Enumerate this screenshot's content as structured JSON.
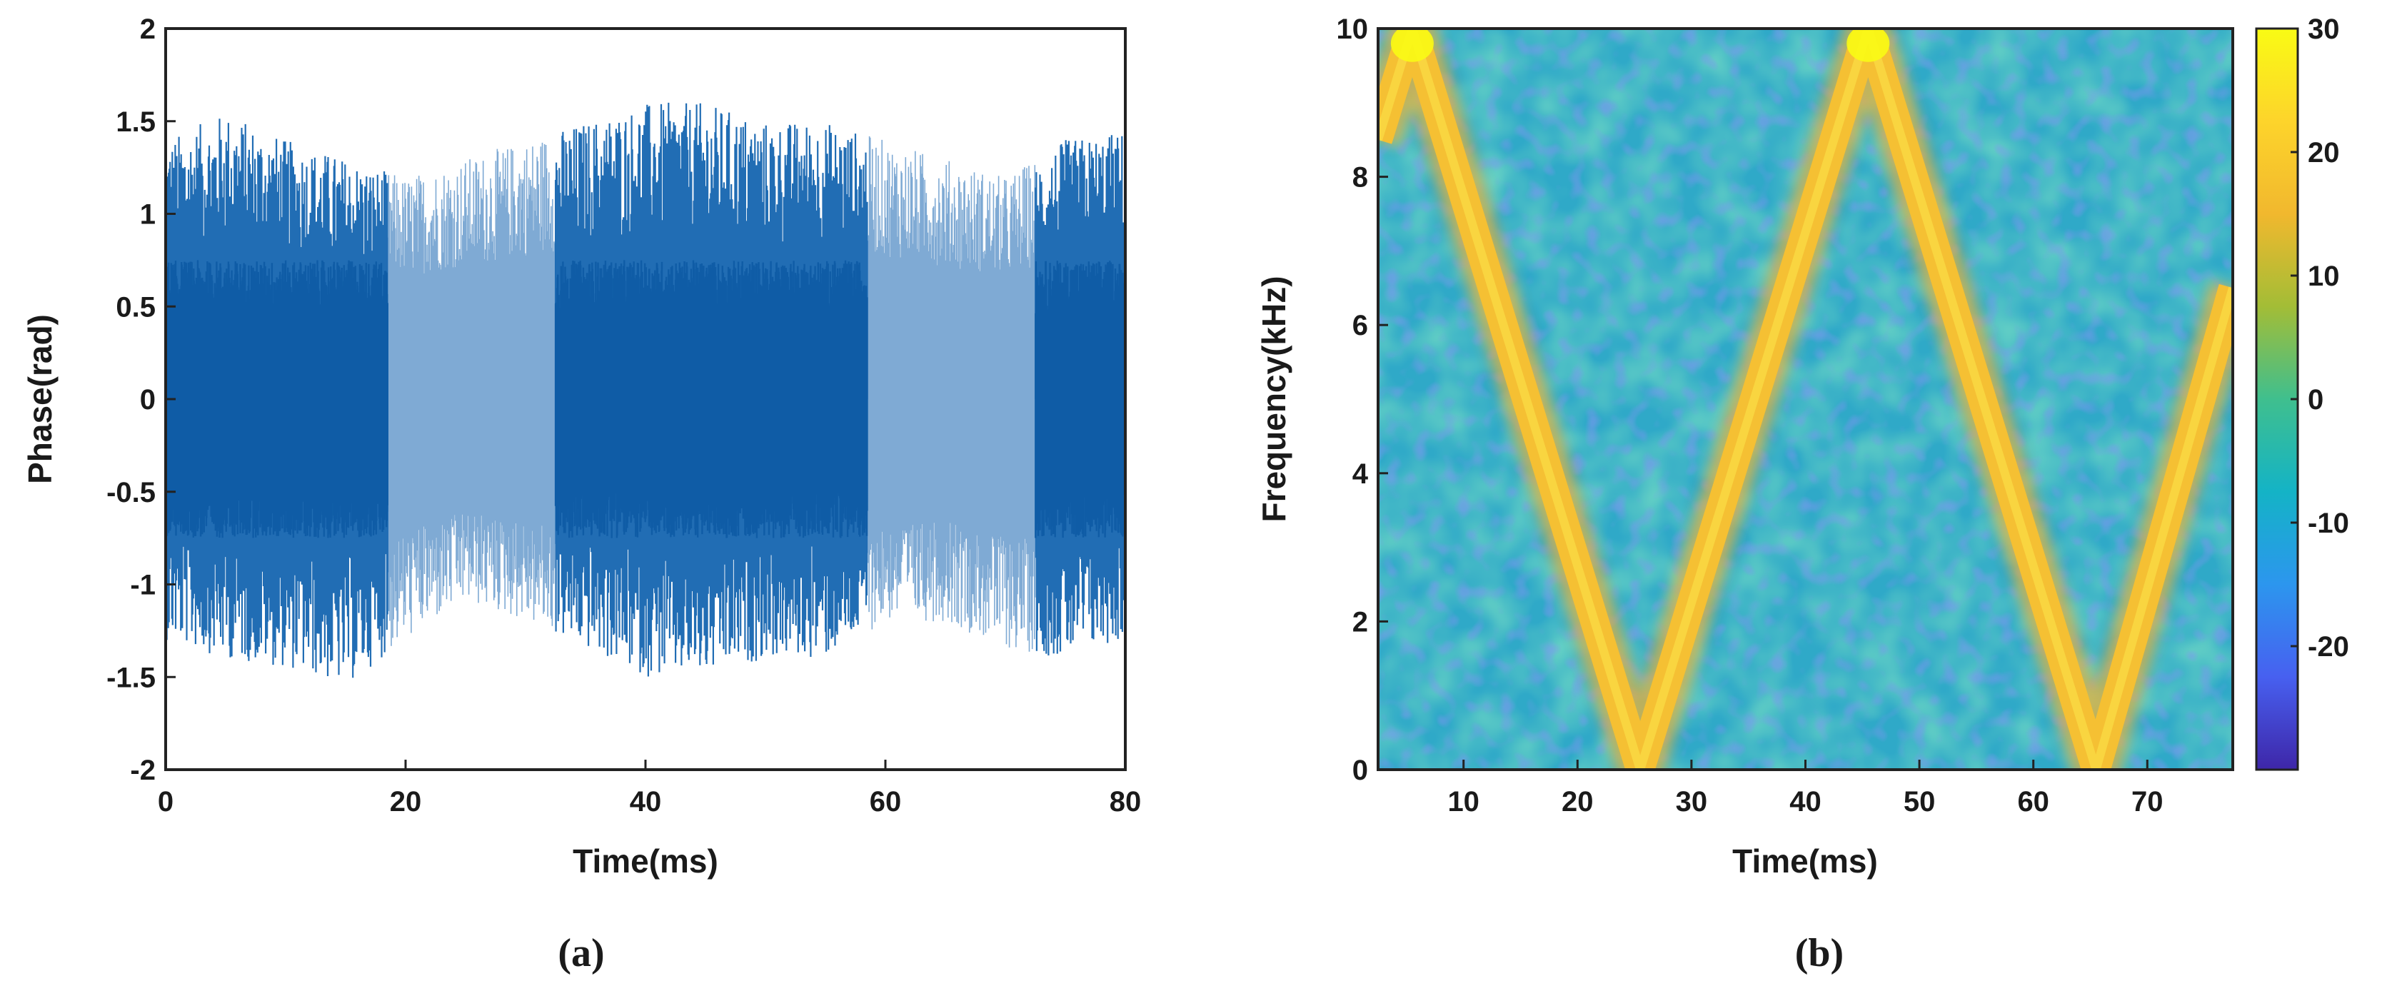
{
  "colors": {
    "signal": "#1565b0",
    "axis": "#222222",
    "colormap": [
      "#3e26a8",
      "#4760f0",
      "#2c96ee",
      "#14b3c6",
      "#3fbf8e",
      "#a3bd36",
      "#f1b82e",
      "#fdd42b",
      "#f9fb14"
    ]
  },
  "panels": [
    {
      "label": "(a)"
    },
    {
      "label": "(b)"
    }
  ],
  "chart_data": [
    {
      "type": "line",
      "xlabel": "Time(ms)",
      "ylabel": "Phase(rad)",
      "xlim": [
        0,
        80
      ],
      "ylim": [
        -2,
        2
      ],
      "xticks": [
        "0",
        "20",
        "40",
        "60",
        "80"
      ],
      "yticks": [
        "2",
        "1.5",
        "1",
        "0.5",
        "0",
        "-0.5",
        "-1",
        "-1.5",
        "-2"
      ],
      "series": [
        {
          "values_description_samples": {
            "time_ms": [
              0,
              5,
              10,
              15,
              20,
              25,
              30,
              35,
              40,
              45,
              50,
              55,
              60,
              65,
              70,
              75,
              80
            ],
            "envelope_max_rad": [
              1.4,
              1.55,
              1.4,
              1.3,
              1.2,
              1.3,
              1.4,
              1.5,
              1.6,
              1.6,
              1.5,
              1.5,
              1.4,
              1.3,
              1.2,
              1.4,
              1.45
            ],
            "envelope_min_rad": [
              -1.3,
              -1.4,
              -1.45,
              -1.55,
              -1.3,
              -1.1,
              -1.2,
              -1.35,
              -1.5,
              -1.5,
              -1.4,
              -1.4,
              -1.2,
              -1.2,
              -1.35,
              -1.4,
              -1.3
            ]
          }
        }
      ],
      "grid": false
    },
    {
      "type": "heatmap",
      "xlabel": "Time(ms)",
      "ylabel": "Frequency(kHz)",
      "xlim": [
        2.5,
        77.5
      ],
      "ylim": [
        0,
        10
      ],
      "xticks": [
        "10",
        "20",
        "30",
        "40",
        "50",
        "60",
        "70"
      ],
      "yticks": [
        "10",
        "8",
        "6",
        "4",
        "2",
        "0"
      ],
      "colorbar": {
        "range": [
          -30,
          30
        ],
        "ticks": [
          "30",
          "20",
          "10",
          "0",
          "-10",
          "-20"
        ]
      },
      "ridge": {
        "time_ms": [
          2.5,
          5.5,
          25.5,
          45.5,
          65.5,
          77.5
        ],
        "frequency_khz": [
          8.5,
          10,
          0,
          10,
          0,
          6.5
        ]
      },
      "grid": false
    }
  ]
}
